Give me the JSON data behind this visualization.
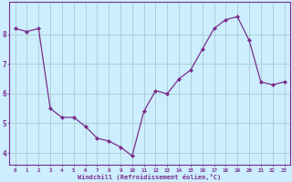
{
  "x": [
    0,
    1,
    2,
    3,
    4,
    5,
    6,
    7,
    8,
    9,
    10,
    11,
    12,
    13,
    14,
    15,
    16,
    17,
    18,
    19,
    20,
    21,
    22,
    23
  ],
  "y": [
    8.2,
    8.1,
    8.2,
    5.5,
    5.2,
    5.2,
    4.9,
    4.5,
    4.4,
    4.2,
    3.9,
    5.4,
    6.1,
    6.0,
    6.5,
    6.8,
    7.5,
    8.2,
    8.5,
    8.6,
    7.8,
    6.4,
    6.3,
    6.4
  ],
  "line_color": "#7B2D8B",
  "marker": "D",
  "marker_size": 2.0,
  "bg_color": "#CCEEFF",
  "grid_color": "#AACCCC",
  "xlabel": "Windchill (Refroidissement éolien,°C)",
  "xlabel_color": "#7B2D8B",
  "tick_color": "#7B2D8B",
  "ylabel_ticks": [
    4,
    5,
    6,
    7,
    8
  ],
  "xlim": [
    -0.5,
    23.5
  ],
  "ylim": [
    3.6,
    9.1
  ],
  "title": ""
}
